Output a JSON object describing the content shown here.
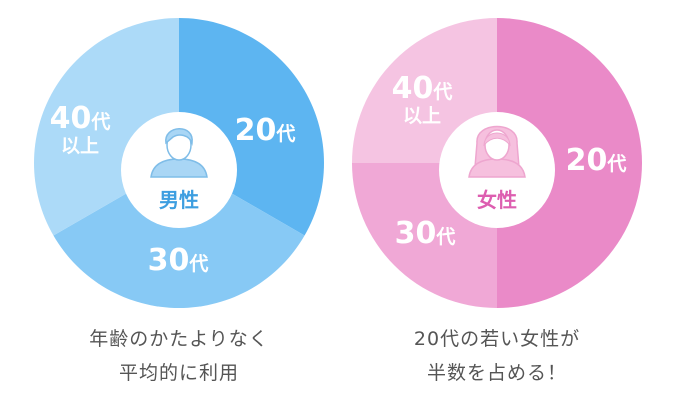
{
  "chart_data": [
    {
      "type": "pie",
      "center_label": "男性",
      "categories": [
        "20代",
        "30代",
        "40代以上"
      ],
      "values": [
        33.3,
        33.3,
        33.3
      ],
      "colors": [
        "#5db5f1",
        "#87c9f5",
        "#acdaf8"
      ],
      "accent": "#3d9ee0",
      "icon": "man-avatar-icon",
      "caption": [
        "年齢のかたよりなく",
        "平均的に利用"
      ]
    },
    {
      "type": "pie",
      "center_label": "女性",
      "categories": [
        "20代",
        "30代",
        "40代以上"
      ],
      "values": [
        50,
        25,
        25
      ],
      "colors": [
        "#ea8ac8",
        "#f0a8d6",
        "#f5c4e2"
      ],
      "accent": "#dd5eb0",
      "icon": "woman-avatar-icon",
      "caption": [
        "20代の若い女性が",
        "半数を占める！"
      ]
    }
  ]
}
